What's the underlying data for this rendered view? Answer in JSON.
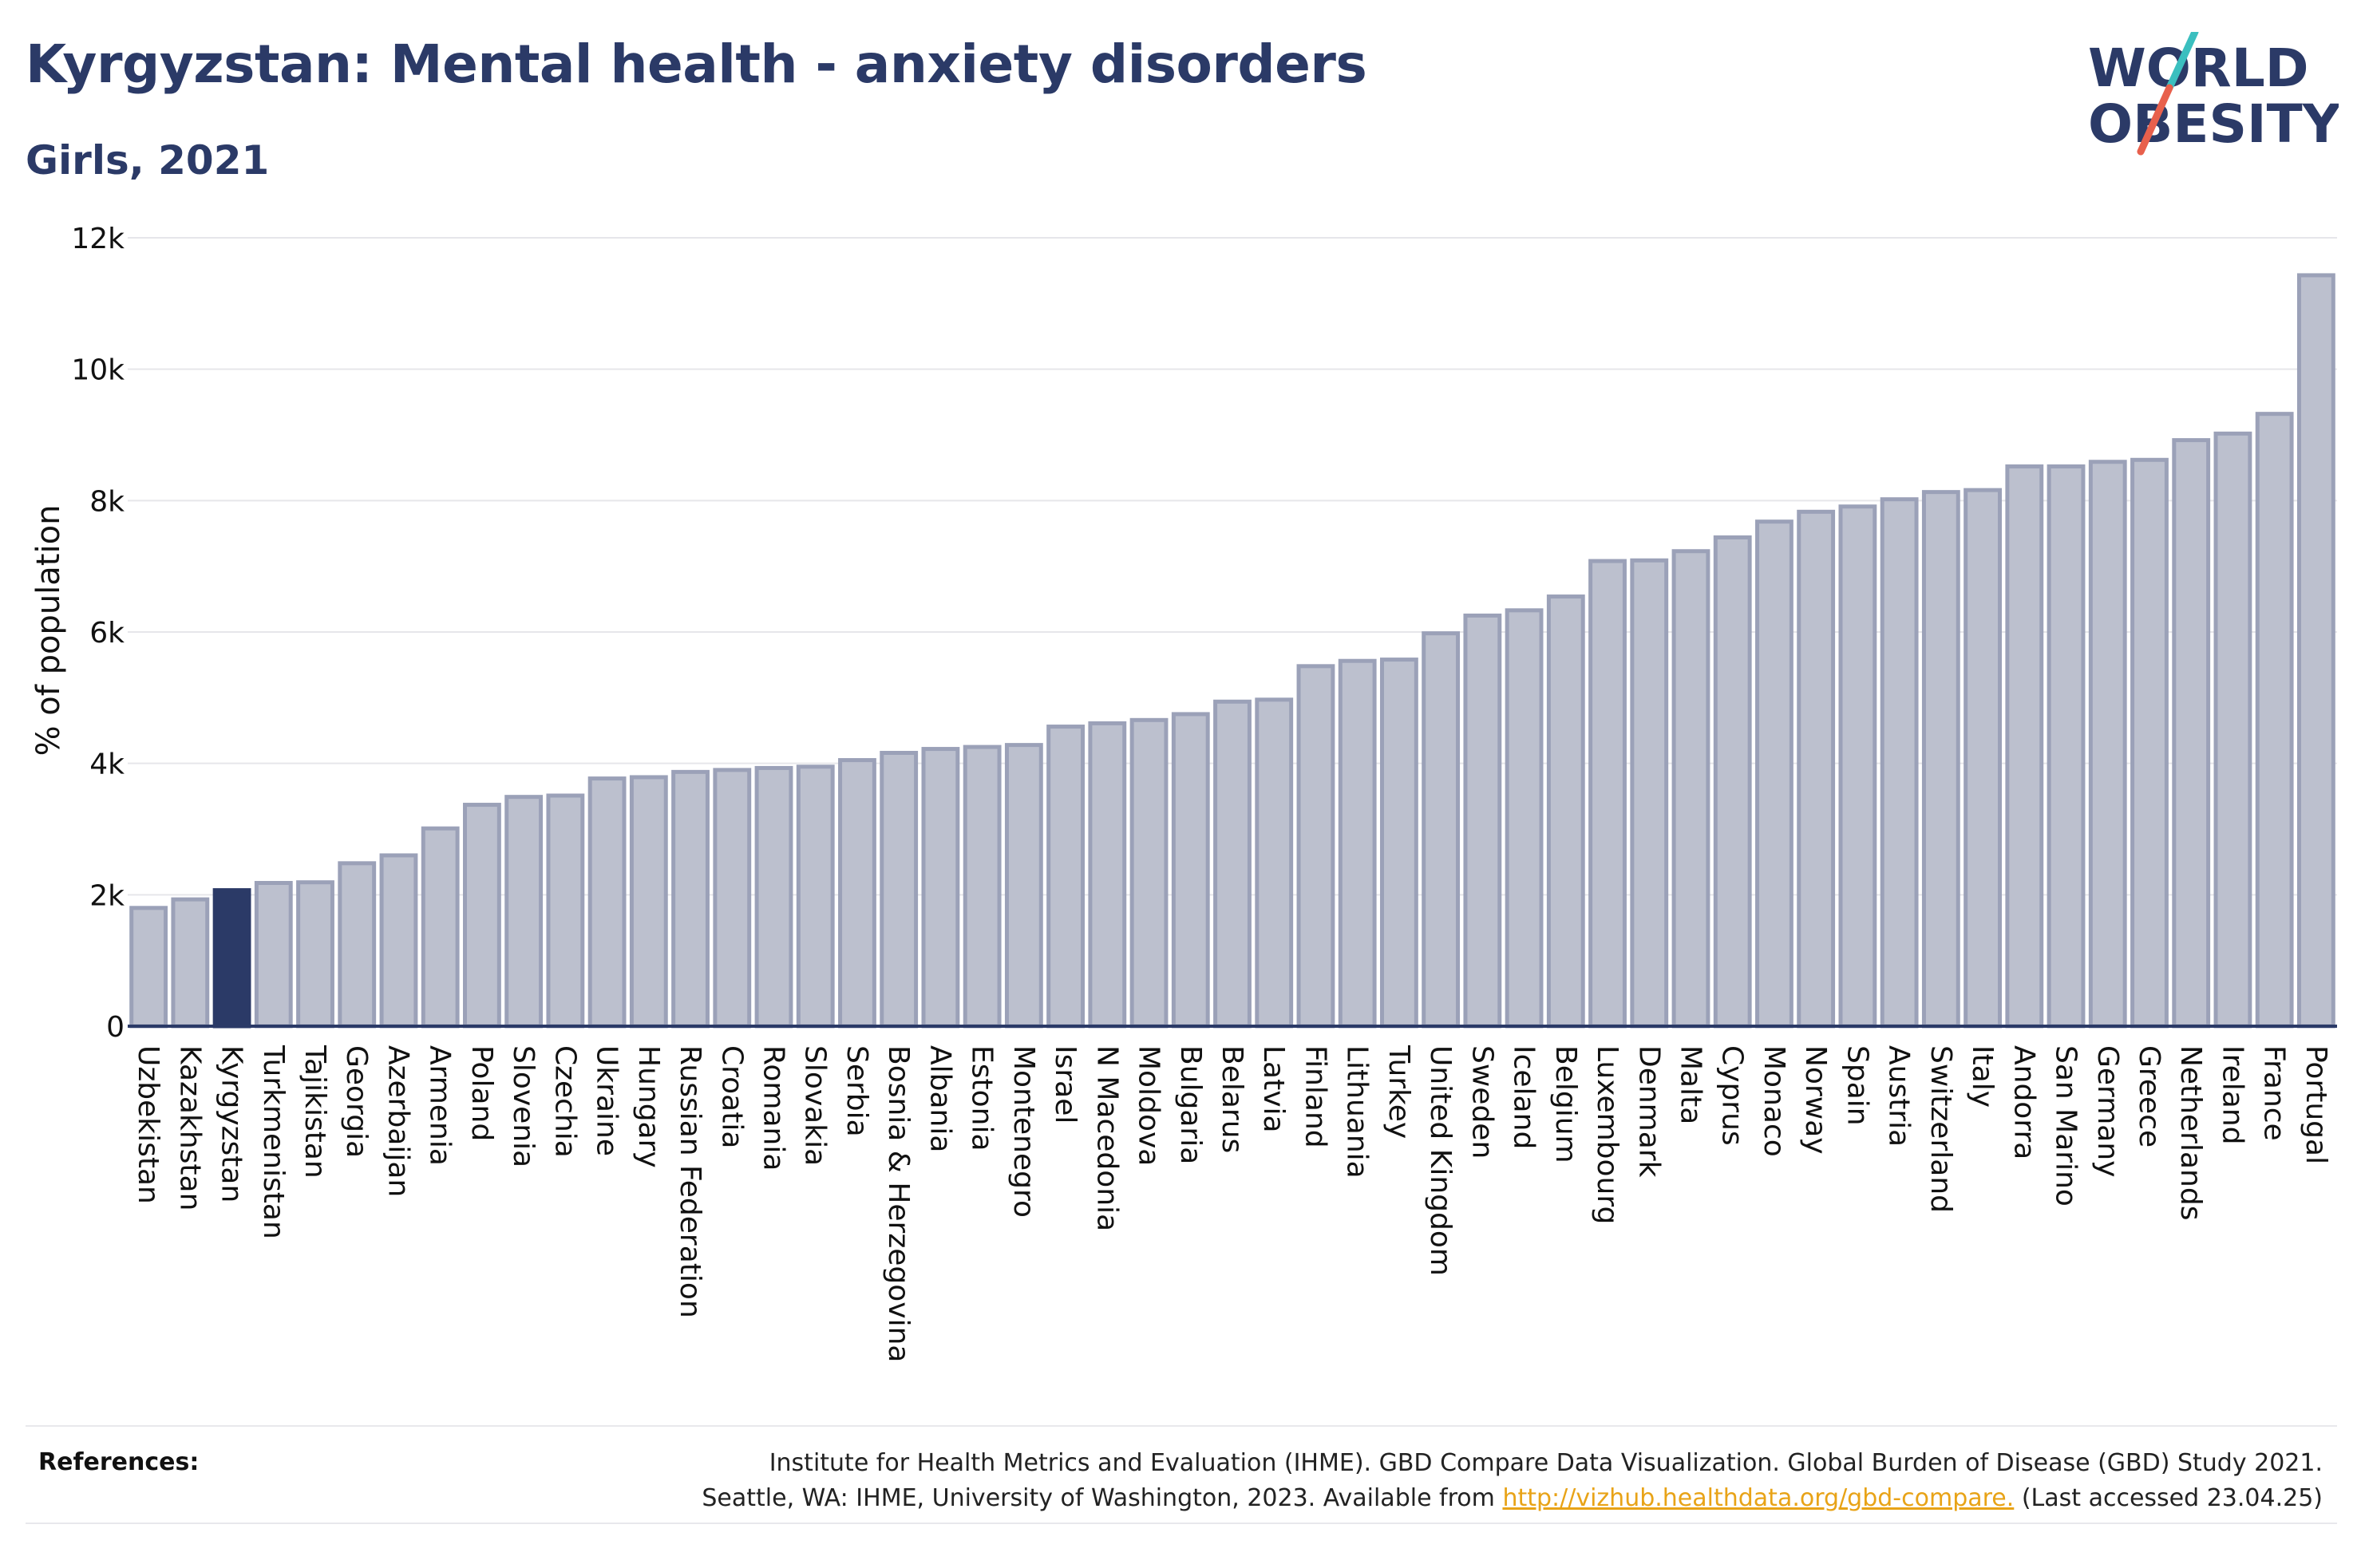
{
  "header": {
    "title": "Kyrgyzstan: Mental health - anxiety disorders",
    "subtitle": "Girls, 2021"
  },
  "logo": {
    "line1": "WORLD",
    "line2": "OBESITY",
    "colors": {
      "text": "#2b3a67",
      "slash_top": "#3bbfbf",
      "slash_bottom": "#e8604c"
    }
  },
  "colors": {
    "bar_fill": "#bcc0ce",
    "bar_stroke": "#9ba1b8",
    "highlight_fill": "#2b3a67",
    "axis": "#2b3a67",
    "grid": "#e6e6ea"
  },
  "chart_data": {
    "type": "bar",
    "ylabel": "% of population",
    "ylim": [
      0,
      12000
    ],
    "yticks": [
      0,
      2000,
      4000,
      6000,
      8000,
      10000,
      12000
    ],
    "ytick_labels": [
      "0",
      "2k",
      "4k",
      "6k",
      "8k",
      "10k",
      "12k"
    ],
    "grid": true,
    "highlight": "Kyrgyzstan",
    "categories": [
      "Uzbekistan",
      "Kazakhstan",
      "Kyrgyzstan",
      "Turkmenistan",
      "Tajikistan",
      "Georgia",
      "Azerbaijan",
      "Armenia",
      "Poland",
      "Slovenia",
      "Czechia",
      "Ukraine",
      "Hungary",
      "Russian Federation",
      "Croatia",
      "Romania",
      "Slovakia",
      "Serbia",
      "Bosnia & Herzegovina",
      "Albania",
      "Estonia",
      "Montenegro",
      "Israel",
      "N Macedonia",
      "Moldova",
      "Bulgaria",
      "Belarus",
      "Latvia",
      "Finland",
      "Lithuania",
      "Turkey",
      "United Kingdom",
      "Sweden",
      "Iceland",
      "Belgium",
      "Luxembourg",
      "Denmark",
      "Malta",
      "Cyprus",
      "Monaco",
      "Norway",
      "Spain",
      "Austria",
      "Switzerland",
      "Italy",
      "Andorra",
      "San Marino",
      "Germany",
      "Greece",
      "Netherlands",
      "Ireland",
      "France",
      "Portugal"
    ],
    "values": [
      1800,
      1930,
      2070,
      2180,
      2190,
      2480,
      2600,
      3010,
      3370,
      3490,
      3510,
      3770,
      3790,
      3870,
      3900,
      3930,
      3950,
      4050,
      4160,
      4220,
      4250,
      4280,
      4560,
      4610,
      4660,
      4750,
      4940,
      4970,
      5480,
      5560,
      5580,
      5980,
      6250,
      6330,
      6540,
      7080,
      7090,
      7230,
      7440,
      7680,
      7830,
      7910,
      8020,
      8130,
      8160,
      8520,
      8520,
      8590,
      8620,
      8920,
      9020,
      9320,
      11430
    ]
  },
  "references": {
    "label": "References:",
    "line1": "Institute for Health Metrics and Evaluation (IHME). GBD Compare Data Visualization. Global Burden of Disease (GBD) Study 2021.",
    "line2_prefix": "Seattle, WA: IHME, University of Washington, 2023. Available from",
    "link": "http://vizhub.healthdata.org/gbd-compare.",
    "line2_suffix": "(Last accessed 23.04.25)"
  }
}
